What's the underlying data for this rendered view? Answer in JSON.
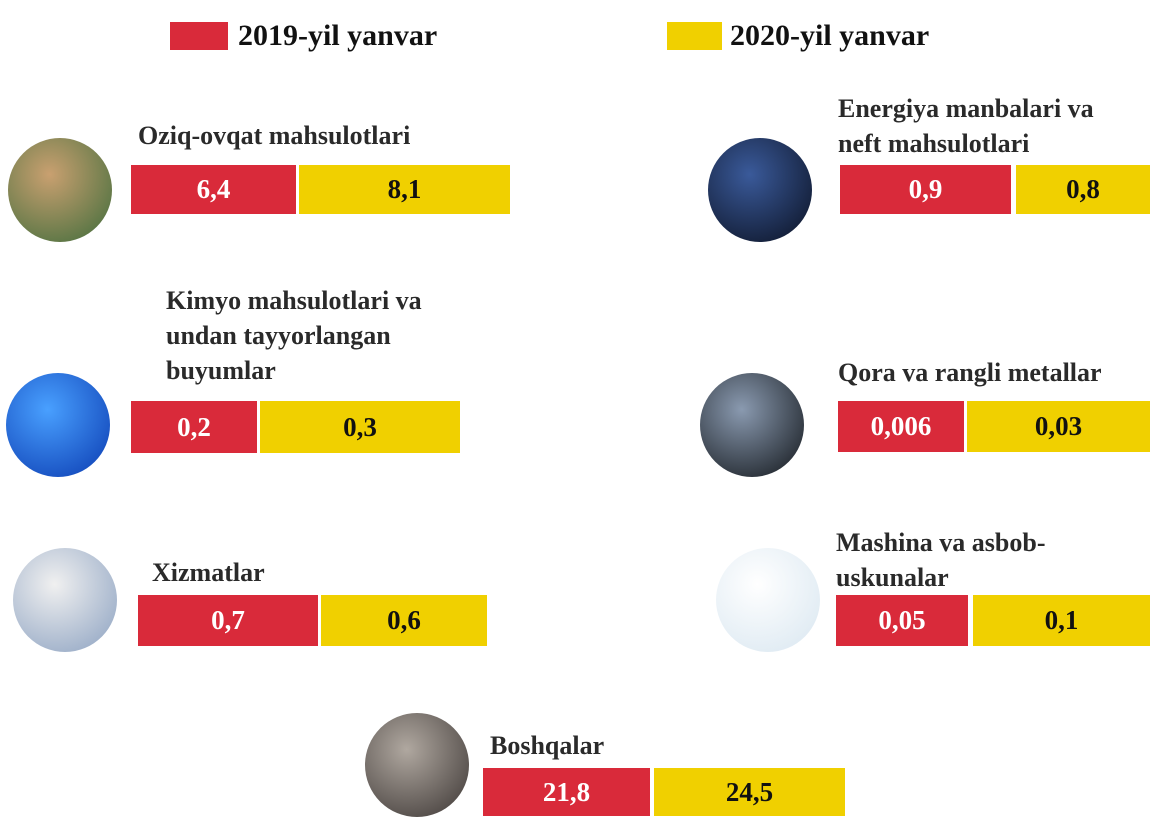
{
  "legend": [
    "2019-yil yanvar",
    "2020-yil yanvar"
  ],
  "items": [
    {
      "title": [
        "Oziq-ovqat mahsulotlari"
      ],
      "values": [
        "6,4",
        "8,1"
      ]
    },
    {
      "title": [
        "Energiya manbalari va",
        "neft mahsulotlari"
      ],
      "values": [
        "0,9",
        "0,8"
      ]
    },
    {
      "title": [
        "Kimyo mahsulotlari va",
        "undan tayyorlangan",
        "buyumlar"
      ],
      "values": [
        "0,2",
        "0,3"
      ]
    },
    {
      "title": [
        "Qora va rangli metallar"
      ],
      "values": [
        "0,006",
        "0,03"
      ]
    },
    {
      "title": [
        "Xizmatlar"
      ],
      "values": [
        "0,7",
        "0,6"
      ]
    },
    {
      "title": [
        "Mashina va asbob-",
        "uskunalar"
      ],
      "values": [
        "0,05",
        "0,1"
      ]
    },
    {
      "title": [
        "Boshqalar"
      ],
      "values": [
        "21,8",
        "24,5"
      ]
    }
  ]
}
